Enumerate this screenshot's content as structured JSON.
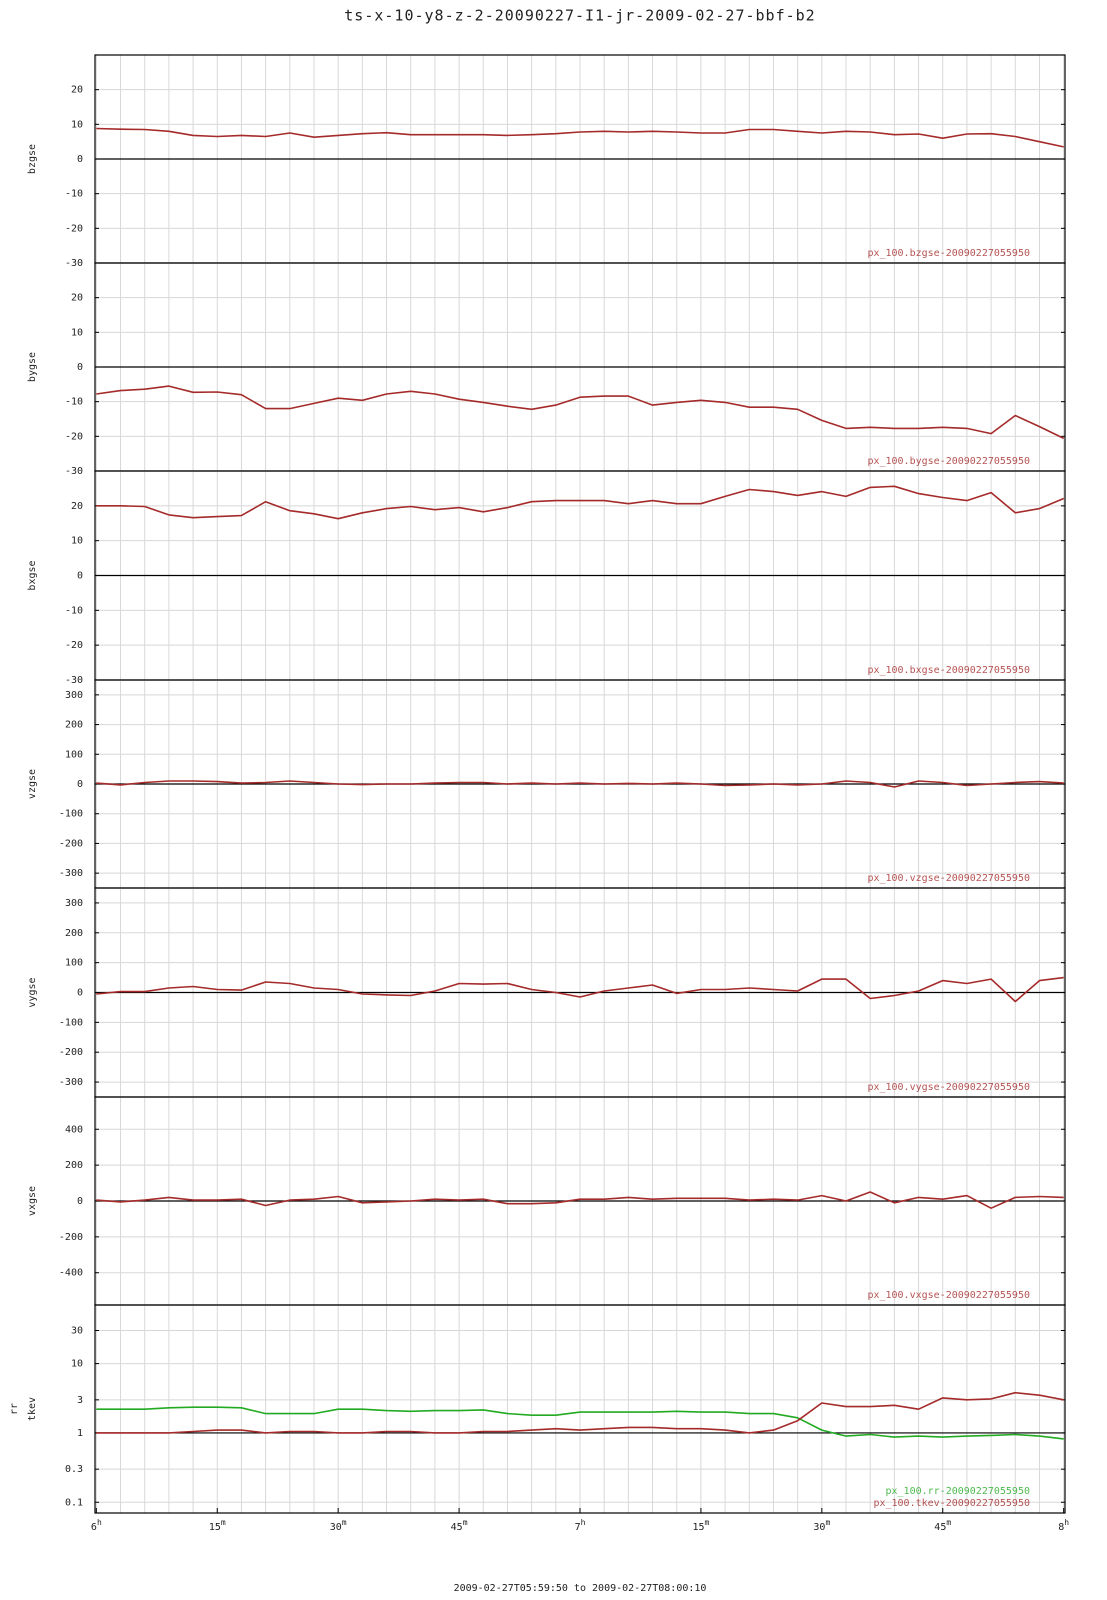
{
  "chart_data": {
    "type": "line",
    "title": "ts-x-10-y8-z-2-20090227-I1-jr-2009-02-27-bbf-b2",
    "xlabel": "2009-02-27T05:59:50 to 2009-02-27T08:00:10",
    "xlim": [
      -0.1667,
      120.1667
    ],
    "xticks": [
      {
        "value": 0,
        "label": "6",
        "sup": "h"
      },
      {
        "value": 15,
        "label": "15",
        "sup": "m"
      },
      {
        "value": 30,
        "label": "30",
        "sup": "m"
      },
      {
        "value": 45,
        "label": "45",
        "sup": "m"
      },
      {
        "value": 60,
        "label": "7",
        "sup": "h"
      },
      {
        "value": 75,
        "label": "15",
        "sup": "m"
      },
      {
        "value": 90,
        "label": "30",
        "sup": "m"
      },
      {
        "value": 105,
        "label": "45",
        "sup": "m"
      },
      {
        "value": 120,
        "label": "8",
        "sup": "h"
      }
    ],
    "xgrid": [
      0,
      3,
      6,
      9,
      12,
      15,
      18,
      21,
      24,
      27,
      30,
      33,
      36,
      39,
      42,
      45,
      48,
      51,
      54,
      57,
      60,
      63,
      66,
      69,
      72,
      75,
      78,
      81,
      84,
      87,
      90,
      93,
      96,
      99,
      102,
      105,
      108,
      111,
      114,
      117,
      120
    ],
    "x": [
      0,
      3,
      6,
      9,
      12,
      15,
      18,
      21,
      24,
      27,
      30,
      33,
      36,
      39,
      42,
      45,
      48,
      51,
      54,
      57,
      60,
      63,
      66,
      69,
      72,
      75,
      78,
      81,
      84,
      87,
      90,
      93,
      96,
      99,
      102,
      105,
      108,
      111,
      114,
      117,
      120
    ],
    "grid": true,
    "panels": [
      {
        "ylabel": [
          "bzgse"
        ],
        "ylim": [
          -30,
          30
        ],
        "yticks": [
          -30,
          -20,
          -10,
          0,
          10,
          20
        ],
        "log": false,
        "hline": 0,
        "series": [
          {
            "name": "px_100.bzgse-20090227055950",
            "color": "#a52a2a",
            "values": [
              8.8,
              8.6,
              8.5,
              8,
              6.8,
              6.5,
              6.8,
              6.5,
              7.5,
              6.3,
              6.8,
              7.3,
              7.6,
              7,
              7,
              7,
              7,
              6.8,
              7,
              7.3,
              7.8,
              8,
              7.8,
              8,
              7.8,
              7.5,
              7.5,
              8.5,
              8.5,
              8,
              7.5,
              8,
              7.8,
              7,
              7.2,
              6,
              7.2,
              7.3,
              6.5,
              5,
              3.5
            ]
          }
        ]
      },
      {
        "ylabel": [
          "bygse"
        ],
        "ylim": [
          -30,
          30
        ],
        "yticks": [
          -30,
          -20,
          -10,
          0,
          10,
          20
        ],
        "log": false,
        "hline": 0,
        "series": [
          {
            "name": "px_100.bygse-20090227055950",
            "color": "#a52a2a",
            "values": [
              -7.8,
              -6.8,
              -6.4,
              -5.5,
              -7.3,
              -7.2,
              -8,
              -12,
              -12,
              -10.5,
              -9,
              -9.6,
              -7.8,
              -7,
              -7.8,
              -9.3,
              -10.2,
              -11.3,
              -12.2,
              -11,
              -8.7,
              -8.4,
              -8.4,
              -11,
              -10.2,
              -9.6,
              -10.2,
              -11.6,
              -11.6,
              -12.2,
              -15.4,
              -17.7,
              -17.4,
              -17.7,
              -17.7,
              -17.4,
              -17.7,
              -19.2,
              -14,
              -17.2,
              -20.6
            ]
          }
        ]
      },
      {
        "ylabel": [
          "bxgse"
        ],
        "ylim": [
          -30,
          30
        ],
        "yticks": [
          -30,
          -20,
          -10,
          0,
          10,
          20
        ],
        "log": false,
        "hline": 0,
        "series": [
          {
            "name": "px_100.bxgse-20090227055950",
            "color": "#a52a2a",
            "values": [
              20,
              20,
              19.8,
              17.4,
              16.6,
              16.9,
              17.2,
              21.2,
              18.6,
              17.7,
              16.3,
              18,
              19.2,
              19.8,
              18.9,
              19.5,
              18.3,
              19.5,
              21.2,
              21.5,
              21.5,
              21.5,
              20.6,
              21.5,
              20.6,
              20.6,
              22.7,
              24.7,
              24.1,
              23,
              24.1,
              22.7,
              25.3,
              25.6,
              23.5,
              22.4,
              21.5,
              23.8,
              18,
              19.2,
              22.1
            ]
          }
        ]
      },
      {
        "ylabel": [
          "vzgse"
        ],
        "ylim": [
          -350,
          350
        ],
        "yticks": [
          -300,
          -200,
          -100,
          0,
          100,
          200,
          300
        ],
        "log": false,
        "hline": 0,
        "series": [
          {
            "name": "px_100.vzgse-20090227055950",
            "color": "#a52a2a",
            "values": [
              3,
              -3,
              5,
              10,
              10,
              8,
              3,
              5,
              10,
              5,
              0,
              -2,
              0,
              0,
              3,
              5,
              5,
              0,
              3,
              0,
              3,
              0,
              2,
              0,
              3,
              0,
              -5,
              -3,
              0,
              -3,
              0,
              10,
              5,
              -10,
              10,
              5,
              -5,
              0,
              5,
              8,
              3
            ]
          }
        ]
      },
      {
        "ylabel": [
          "vygse"
        ],
        "ylim": [
          -350,
          350
        ],
        "yticks": [
          -300,
          -200,
          -100,
          0,
          100,
          200,
          300
        ],
        "log": false,
        "hline": 0,
        "series": [
          {
            "name": "px_100.vygse-20090227055950",
            "color": "#a52a2a",
            "values": [
              -5,
              3,
              3,
              15,
              20,
              10,
              8,
              35,
              30,
              15,
              10,
              -5,
              -8,
              -10,
              5,
              30,
              28,
              30,
              10,
              0,
              -15,
              5,
              15,
              25,
              -3,
              10,
              10,
              15,
              10,
              5,
              45,
              45,
              -20,
              -10,
              5,
              40,
              30,
              45,
              -30,
              40,
              50
            ]
          }
        ]
      },
      {
        "ylabel": [
          "vxgse"
        ],
        "ylim": [
          -580,
          580
        ],
        "yticks": [
          -400,
          -200,
          0,
          200,
          400
        ],
        "log": false,
        "hline": 0,
        "series": [
          {
            "name": "px_100.vxgse-20090227055950",
            "color": "#a52a2a",
            "values": [
              5,
              -5,
              5,
              20,
              5,
              5,
              10,
              -25,
              5,
              10,
              25,
              -10,
              -5,
              0,
              10,
              5,
              10,
              -15,
              -15,
              -10,
              10,
              10,
              20,
              10,
              15,
              15,
              15,
              5,
              10,
              5,
              30,
              0,
              50,
              -10,
              20,
              10,
              30,
              -40,
              20,
              25,
              20
            ]
          }
        ]
      },
      {
        "ylabel": [
          "rr",
          "tkev"
        ],
        "ylim": [
          0.07,
          70
        ],
        "yticks": [
          0.1,
          0.3,
          1,
          3,
          10,
          30
        ],
        "log": true,
        "hline": 1,
        "series": [
          {
            "name": "px_100.rr-20090227055950",
            "color": "#22aa22",
            "values": [
              2.2,
              2.2,
              2.2,
              2.3,
              2.35,
              2.35,
              2.3,
              1.9,
              1.9,
              1.9,
              2.2,
              2.2,
              2.1,
              2.05,
              2.1,
              2.1,
              2.15,
              1.9,
              1.8,
              1.8,
              2,
              2,
              2,
              2,
              2.05,
              2,
              2,
              1.9,
              1.9,
              1.65,
              1.1,
              0.9,
              0.95,
              0.87,
              0.9,
              0.87,
              0.9,
              0.92,
              0.95,
              0.9,
              0.82
            ]
          },
          {
            "name": "px_100.tkev-20090227055950",
            "color": "#a52a2a",
            "values": [
              1,
              1,
              1,
              1,
              1.05,
              1.1,
              1.1,
              1,
              1.05,
              1.05,
              1,
              1,
              1.05,
              1.05,
              1,
              1,
              1.05,
              1.05,
              1.1,
              1.15,
              1.1,
              1.15,
              1.2,
              1.2,
              1.15,
              1.15,
              1.1,
              1,
              1.1,
              1.5,
              2.7,
              2.4,
              2.4,
              2.5,
              2.2,
              3.2,
              3,
              3.1,
              3.8,
              3.5,
              3.0
            ]
          }
        ]
      }
    ]
  }
}
